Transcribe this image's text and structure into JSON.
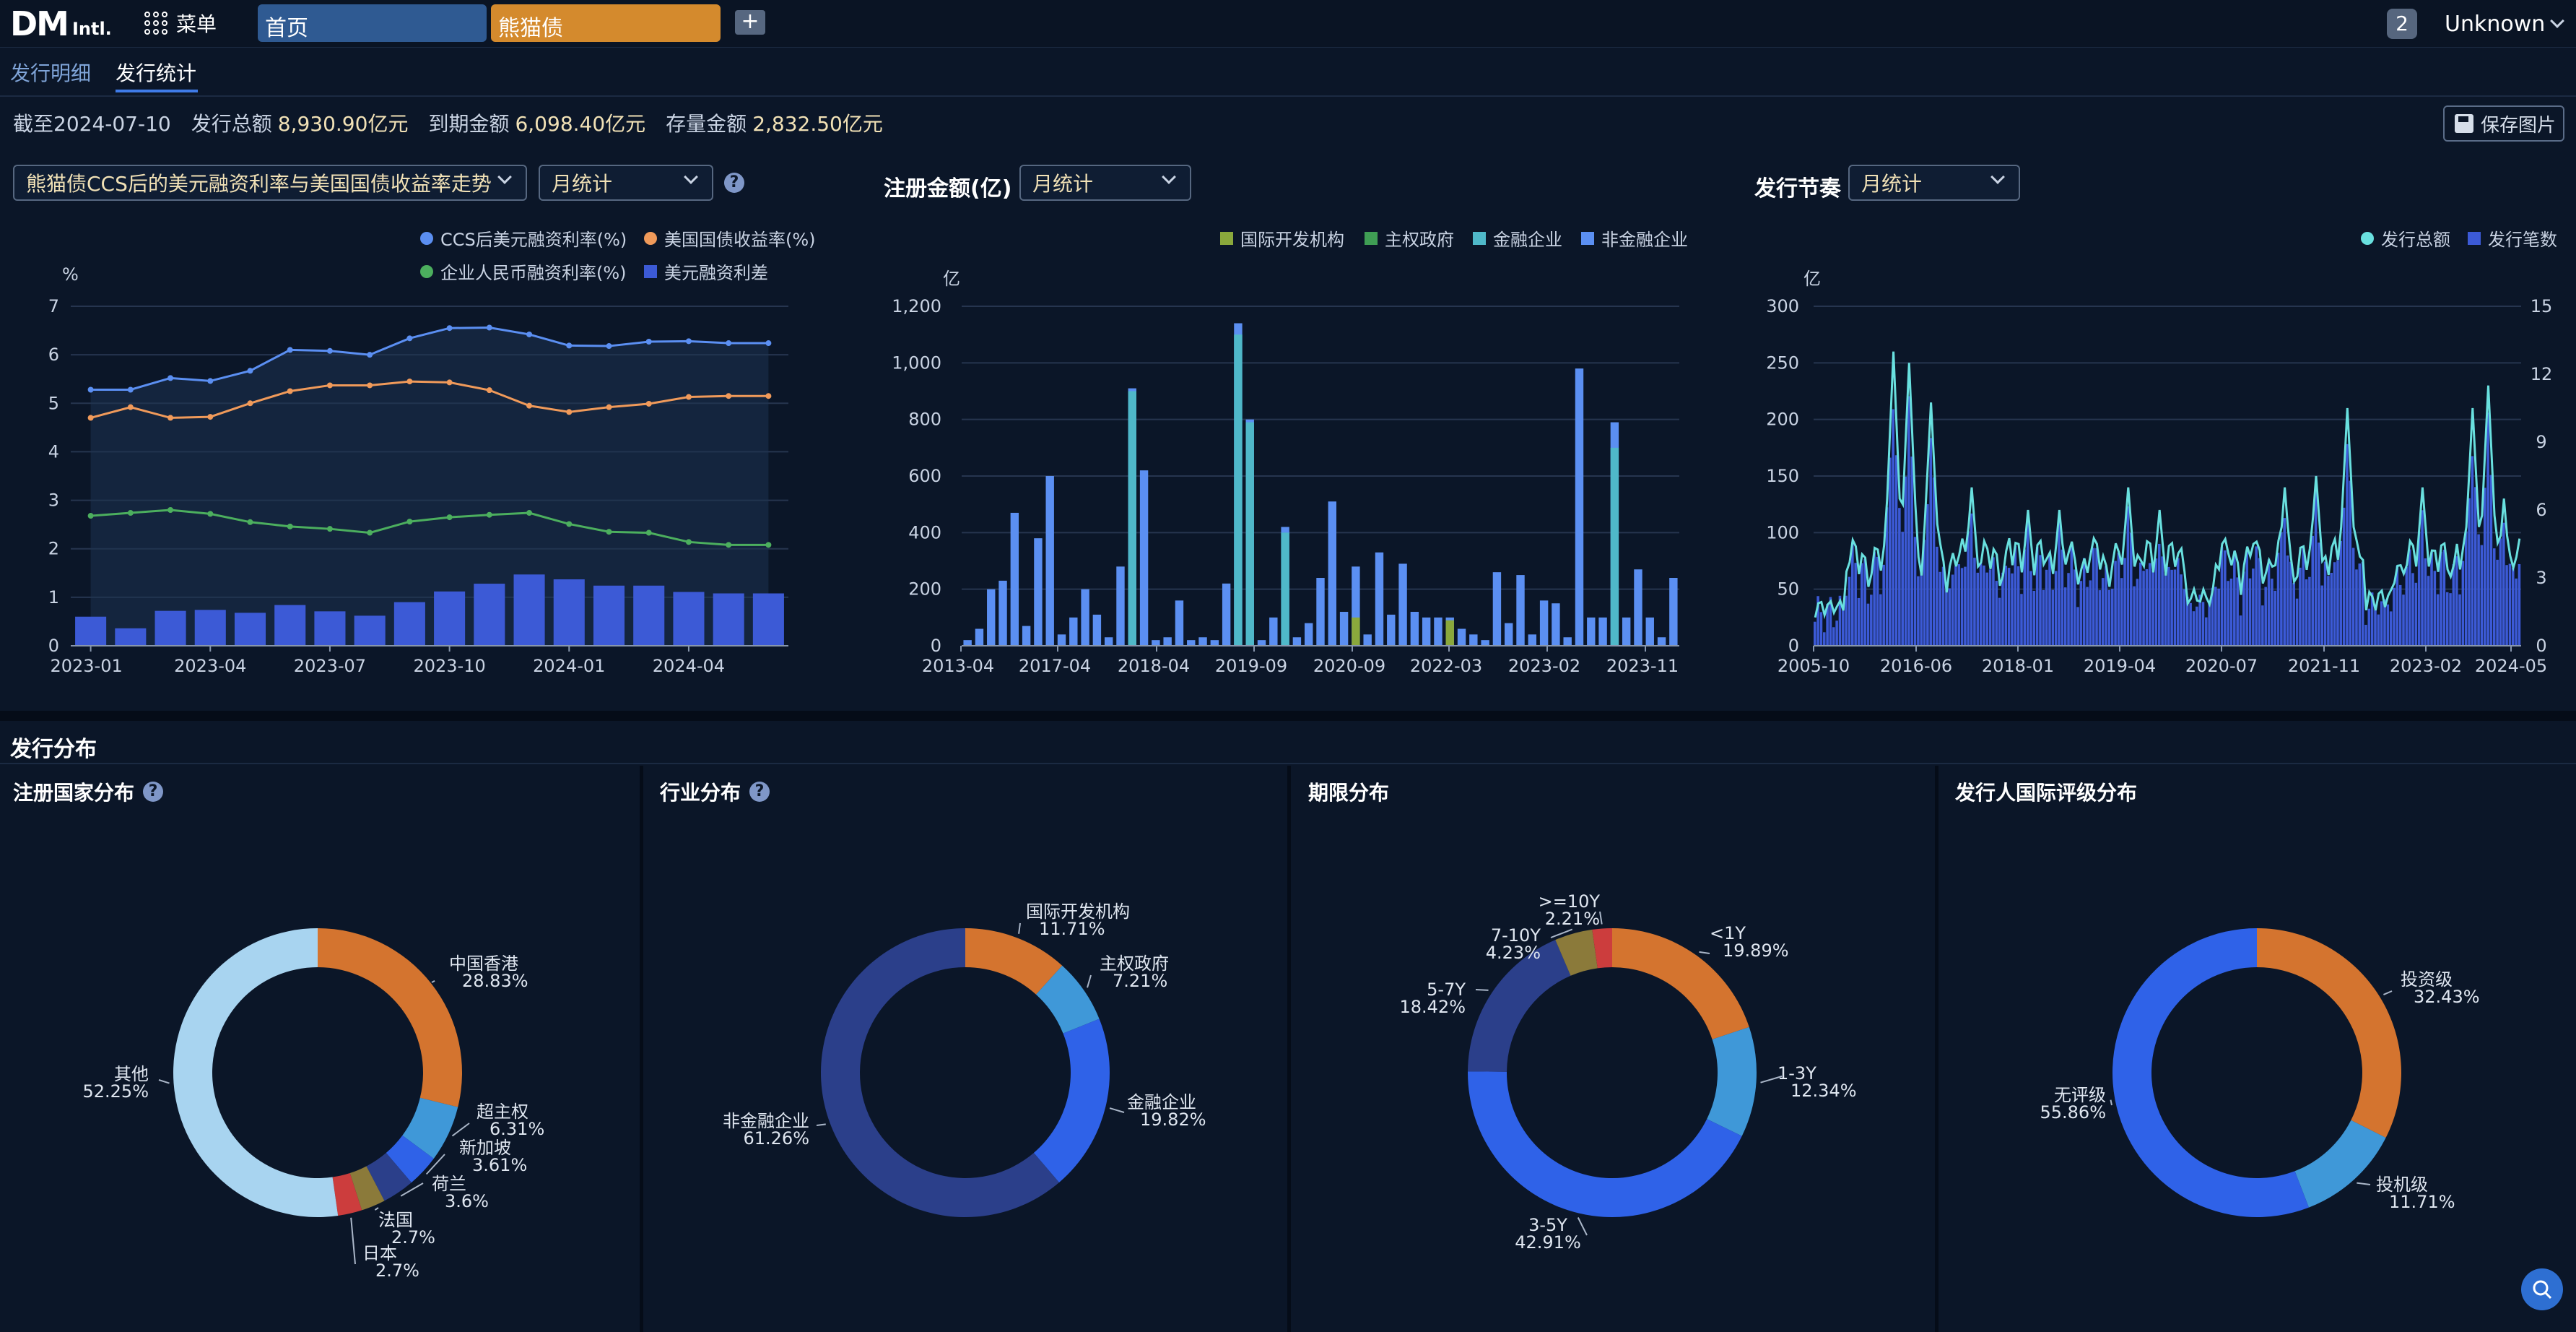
{
  "topbar": {
    "logo_main": "DM",
    "logo_sub": "Intl.",
    "menu_label": "菜单",
    "tabs": [
      {
        "label": "首页"
      },
      {
        "label": "熊猫债"
      }
    ],
    "add_label": "+",
    "notif_count": "2",
    "user": "Unknown"
  },
  "subtabs": [
    {
      "label": "发行明细"
    },
    {
      "label": "发行统计"
    }
  ],
  "summary": {
    "date_label": "截至2024-07-10",
    "issue_label": "发行总额",
    "issue_value": "8,930.90亿元",
    "due_label": "到期金额",
    "due_value": "6,098.40亿元",
    "stock_label": "存量金额",
    "stock_value": "2,832.50亿元",
    "save_label": "保存图片"
  },
  "chart1": {
    "select": "熊猫债CCS后的美元融资利率与美国国债收益率走势",
    "period": "月统计",
    "help": "?",
    "unit": "%"
  },
  "chart2": {
    "title": "注册金额(亿)",
    "period": "月统计",
    "unit": "亿"
  },
  "chart3": {
    "title": "发行节奏",
    "period": "月统计",
    "unit": "亿"
  },
  "distribution": {
    "title": "发行分布",
    "panels": [
      {
        "title": "注册国家分布",
        "help": "?"
      },
      {
        "title": "行业分布",
        "help": "?"
      },
      {
        "title": "期限分布"
      },
      {
        "title": "发行人国际评级分布"
      }
    ]
  },
  "colors": {
    "accent": "#3f7be8",
    "orange": "#d4742f",
    "panda_tab": "#d48a2d",
    "home_tab": "#2f5a92"
  },
  "chart_data": [
    {
      "type": "line",
      "x": [
        "2023-01",
        "2023-02",
        "2023-03",
        "2023-04",
        "2023-05",
        "2023-06",
        "2023-07",
        "2023-08",
        "2023-09",
        "2023-10",
        "2023-11",
        "2023-12",
        "2024-01",
        "2024-02",
        "2024-03",
        "2024-04",
        "2024-05",
        "2024-06"
      ],
      "xticks": [
        "2023-01",
        "2023-04",
        "2023-07",
        "2023-10",
        "2024-01",
        "2024-04"
      ],
      "yticks": [
        "0",
        "1",
        "2",
        "3",
        "4",
        "5",
        "6",
        "7"
      ],
      "ylim": [
        0,
        7
      ],
      "series": [
        {
          "name": "CCS后美元融资利率(%)",
          "color": "#5b8ff2",
          "values": [
            5.28,
            5.28,
            5.52,
            5.46,
            5.67,
            6.1,
            6.08,
            6.0,
            6.34,
            6.55,
            6.56,
            6.42,
            6.19,
            6.18,
            6.27,
            6.28,
            6.24,
            6.24
          ]
        },
        {
          "name": "美国国债收益率(%)",
          "color": "#f09a5a",
          "values": [
            4.7,
            4.92,
            4.7,
            4.72,
            5.0,
            5.25,
            5.37,
            5.37,
            5.45,
            5.43,
            5.27,
            4.95,
            4.82,
            4.92,
            4.99,
            5.13,
            5.15,
            5.15
          ]
        },
        {
          "name": "企业人民币融资利率(%)",
          "color": "#4caf5e",
          "values": [
            2.68,
            2.74,
            2.8,
            2.72,
            2.55,
            2.46,
            2.41,
            2.33,
            2.56,
            2.65,
            2.7,
            2.74,
            2.51,
            2.35,
            2.33,
            2.14,
            2.08,
            2.08
          ]
        },
        {
          "name": "美元融资利差",
          "color": "#3c5ad6",
          "type": "bar",
          "values": [
            0.6,
            0.36,
            0.72,
            0.74,
            0.68,
            0.84,
            0.71,
            0.62,
            0.9,
            1.12,
            1.28,
            1.47,
            1.37,
            1.24,
            1.24,
            1.11,
            1.08,
            1.08
          ]
        }
      ]
    },
    {
      "type": "bar",
      "xticks": [
        "2013-04",
        "2017-04",
        "2018-04",
        "2019-09",
        "2020-09",
        "2022-03",
        "2023-02",
        "2023-11"
      ],
      "yticks": [
        "0",
        "200",
        "400",
        "600",
        "800",
        "1,000",
        "1,200"
      ],
      "ylim": [
        0,
        1200
      ],
      "legend": [
        {
          "name": "国际开发机构",
          "color": "#8aa83c"
        },
        {
          "name": "主权政府",
          "color": "#3f9e54"
        },
        {
          "name": "金融企业",
          "color": "#4fb8c9"
        },
        {
          "name": "非金融企业",
          "color": "#5b8ff2"
        }
      ],
      "values": [
        20,
        60,
        200,
        230,
        470,
        70,
        380,
        600,
        40,
        100,
        200,
        110,
        30,
        280,
        910,
        620,
        20,
        30,
        160,
        20,
        30,
        20,
        220,
        1140,
        800,
        20,
        100,
        420,
        30,
        80,
        240,
        510,
        120,
        280,
        40,
        330,
        110,
        290,
        120,
        100,
        100,
        100,
        60,
        40,
        20,
        260,
        80,
        250,
        40,
        160,
        150,
        30,
        980,
        100,
        100,
        790,
        100,
        270,
        100,
        30,
        240
      ],
      "stack_teal": [
        0,
        0,
        0,
        0,
        0,
        0,
        0,
        0,
        0,
        0,
        0,
        0,
        0,
        0,
        900,
        0,
        0,
        0,
        0,
        0,
        0,
        0,
        0,
        1100,
        790,
        0,
        0,
        400,
        0,
        0,
        0,
        0,
        0,
        0,
        0,
        0,
        0,
        0,
        0,
        0,
        0,
        0,
        0,
        0,
        0,
        0,
        0,
        0,
        0,
        0,
        0,
        0,
        0,
        0,
        0,
        700,
        0,
        0,
        0,
        0,
        0
      ],
      "stack_green": [
        0,
        0,
        0,
        0,
        0,
        0,
        0,
        0,
        0,
        0,
        0,
        0,
        0,
        0,
        0,
        0,
        0,
        0,
        0,
        0,
        0,
        0,
        0,
        0,
        0,
        0,
        0,
        0,
        0,
        0,
        0,
        0,
        0,
        100,
        0,
        0,
        0,
        0,
        0,
        0,
        0,
        90,
        0,
        0,
        0,
        0,
        0,
        0,
        0,
        0,
        0,
        0,
        0,
        0,
        0,
        0,
        0,
        0,
        0,
        0,
        0
      ]
    },
    {
      "type": "bar+line",
      "xticks": [
        "2005-10",
        "2016-06",
        "2018-01",
        "2019-04",
        "2020-07",
        "2021-11",
        "2023-02",
        "2024-05"
      ],
      "yticks_left": [
        "0",
        "50",
        "100",
        "150",
        "200",
        "250",
        "300"
      ],
      "yticks_right": [
        "0",
        "3",
        "6",
        "9",
        "12",
        "15"
      ],
      "ylim_left": [
        0,
        300
      ],
      "ylim_right": [
        0,
        15
      ],
      "legend": [
        {
          "name": "发行总额",
          "color": "#69e0df"
        },
        {
          "name": "发行笔数",
          "color": "#3c5ad6"
        }
      ]
    },
    {
      "type": "pie",
      "title": "注册国家分布",
      "slices": [
        {
          "label": "中国香港",
          "pct": "28.83%",
          "value": 28.83,
          "color": "#d4742f"
        },
        {
          "label": "超主权",
          "pct": "6.31%",
          "value": 6.31,
          "color": "#3f98d8"
        },
        {
          "label": "新加坡",
          "pct": "3.61%",
          "value": 3.61,
          "color": "#2f62e8"
        },
        {
          "label": "荷兰",
          "pct": "3.6%",
          "value": 3.6,
          "color": "#2b3f8a"
        },
        {
          "label": "法国",
          "pct": "2.7%",
          "value": 2.7,
          "color": "#8b7a3a"
        },
        {
          "label": "日本",
          "pct": "2.7%",
          "value": 2.7,
          "color": "#cc3d3d"
        },
        {
          "label": "其他",
          "pct": "52.25%",
          "value": 52.25,
          "color": "#a8d4f0"
        }
      ]
    },
    {
      "type": "pie",
      "title": "行业分布",
      "slices": [
        {
          "label": "国际开发机构",
          "pct": "11.71%",
          "value": 11.71,
          "color": "#d4742f"
        },
        {
          "label": "主权政府",
          "pct": "7.21%",
          "value": 7.21,
          "color": "#3f98d8"
        },
        {
          "label": "金融企业",
          "pct": "19.82%",
          "value": 19.82,
          "color": "#2f62e8"
        },
        {
          "label": "非金融企业",
          "pct": "61.26%",
          "value": 61.26,
          "color": "#2b3f8a"
        }
      ]
    },
    {
      "type": "pie",
      "title": "期限分布",
      "slices": [
        {
          "label": "<1Y",
          "pct": "19.89%",
          "value": 19.89,
          "color": "#d4742f"
        },
        {
          "label": "1-3Y",
          "pct": "12.34%",
          "value": 12.34,
          "color": "#3f98d8"
        },
        {
          "label": "3-5Y",
          "pct": "42.91%",
          "value": 42.91,
          "color": "#2f62e8"
        },
        {
          "label": "5-7Y",
          "pct": "18.42%",
          "value": 18.42,
          "color": "#2b3f8a"
        },
        {
          "label": "7-10Y",
          "pct": "4.23%",
          "value": 4.23,
          "color": "#8b7a3a"
        },
        {
          "label": ">=10Y",
          "pct": "2.21%",
          "value": 2.21,
          "color": "#cc3d3d"
        }
      ]
    },
    {
      "type": "pie",
      "title": "发行人国际评级分布",
      "slices": [
        {
          "label": "投资级",
          "pct": "32.43%",
          "value": 32.43,
          "color": "#d4742f"
        },
        {
          "label": "投机级",
          "pct": "11.71%",
          "value": 11.71,
          "color": "#3f98d8"
        },
        {
          "label": "无评级",
          "pct": "55.86%",
          "value": 55.86,
          "color": "#2f62e8"
        }
      ]
    }
  ]
}
